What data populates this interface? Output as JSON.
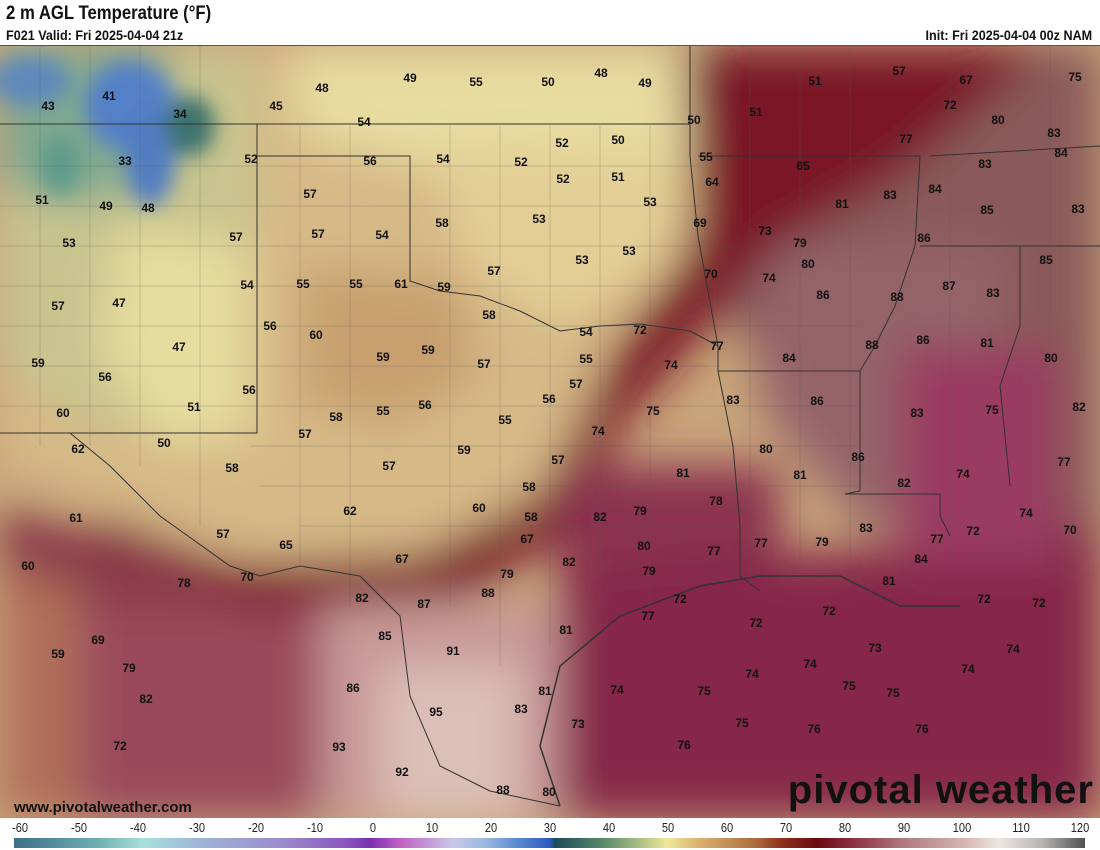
{
  "header": {
    "title": "2 m AGL Temperature (°F)",
    "valid": "F021 Valid: Fri 2025-04-04 21z",
    "init": "Init: Fri 2025-04-04 00z NAM"
  },
  "map": {
    "units": "°F",
    "temperature_labels": [
      "43",
      "41",
      "34",
      "45",
      "48",
      "49",
      "55",
      "50",
      "48",
      "49",
      "51",
      "57",
      "67",
      "75",
      "54",
      "50",
      "51",
      "72",
      "80",
      "83",
      "33",
      "52",
      "56",
      "54",
      "52",
      "52",
      "50",
      "55",
      "77",
      "84",
      "65",
      "83",
      "64",
      "51",
      "52",
      "51",
      "49",
      "48",
      "57",
      "81",
      "83",
      "84",
      "85",
      "83",
      "53",
      "58",
      "53",
      "69",
      "73",
      "79",
      "86",
      "53",
      "57",
      "57",
      "54",
      "53",
      "53",
      "80",
      "70",
      "74",
      "85",
      "57",
      "87",
      "83",
      "57",
      "47",
      "54",
      "55",
      "55",
      "61",
      "59",
      "88",
      "86",
      "58",
      "54",
      "72",
      "77",
      "56",
      "60",
      "88",
      "86",
      "81",
      "47",
      "59",
      "56",
      "59",
      "59",
      "57",
      "55",
      "74",
      "84",
      "80",
      "57",
      "56",
      "51",
      "60",
      "58",
      "55",
      "56",
      "56",
      "55",
      "75",
      "83",
      "86",
      "83",
      "75",
      "82",
      "57",
      "74",
      "50",
      "62",
      "59",
      "80",
      "86",
      "57",
      "57",
      "58",
      "81",
      "81",
      "74",
      "77",
      "58",
      "78",
      "82",
      "61",
      "62",
      "60",
      "58",
      "82",
      "79",
      "74",
      "70",
      "72",
      "57",
      "65",
      "67",
      "80",
      "83",
      "77",
      "84",
      "67",
      "82",
      "77",
      "77",
      "79",
      "60",
      "70",
      "79",
      "79",
      "78",
      "82",
      "87",
      "88",
      "81",
      "72",
      "72",
      "72",
      "77",
      "72",
      "72",
      "85",
      "81",
      "69",
      "91",
      "73",
      "74",
      "59",
      "79",
      "74",
      "74",
      "74",
      "86",
      "74",
      "75",
      "75",
      "75",
      "81",
      "82",
      "83",
      "95",
      "73",
      "75",
      "76",
      "76",
      "72",
      "93",
      "76",
      "92",
      "88",
      "80"
    ],
    "website": "www.pivotalweather.com",
    "brand": "pivotal weather"
  },
  "colorbar": {
    "ticks": [
      "-60",
      "-50",
      "-40",
      "-30",
      "-20",
      "-10",
      "0",
      "10",
      "20",
      "30",
      "40",
      "50",
      "60",
      "70",
      "80",
      "90",
      "100",
      "110",
      "120"
    ]
  }
}
